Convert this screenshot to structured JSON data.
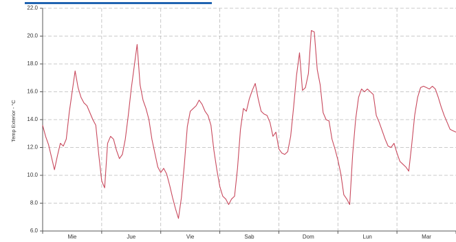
{
  "colors": {
    "line": "#c8485c",
    "grid": "#b9b9b9",
    "axis": "#555555",
    "header_bar": "#1f63b0"
  },
  "chart_data": {
    "type": "line",
    "title": "",
    "xlabel": "",
    "ylabel": "Temp Exterior - °C",
    "ylim": [
      6.0,
      22.0
    ],
    "yticks": [
      "6.0",
      "8.0",
      "10.0",
      "12.0",
      "14.0",
      "16.0",
      "18.0",
      "20.0",
      "22.0"
    ],
    "xlim": [
      0,
      7
    ],
    "day_labels": [
      "Mie",
      "Jue",
      "Vie",
      "Sab",
      "Dom",
      "Lun",
      "Mar"
    ],
    "grid": true,
    "legend": "none",
    "series": [
      {
        "x": [
          0,
          0.05,
          0.1,
          0.15,
          0.2,
          0.25,
          0.3,
          0.35,
          0.4,
          0.45,
          0.5,
          0.55,
          0.6,
          0.65,
          0.7,
          0.75,
          0.8,
          0.85,
          0.9,
          0.95,
          1.0,
          1.05,
          1.1,
          1.15,
          1.2,
          1.25,
          1.3,
          1.35,
          1.4,
          1.45,
          1.5,
          1.55,
          1.6,
          1.65,
          1.7,
          1.75,
          1.8,
          1.85,
          1.9,
          1.95,
          2.0,
          2.05,
          2.1,
          2.15,
          2.2,
          2.25,
          2.3,
          2.35,
          2.4,
          2.45,
          2.5,
          2.55,
          2.6,
          2.65,
          2.7,
          2.75,
          2.8,
          2.85,
          2.9,
          2.95,
          3.0,
          3.05,
          3.1,
          3.15,
          3.2,
          3.25,
          3.3,
          3.35,
          3.4,
          3.45,
          3.5,
          3.55,
          3.6,
          3.65,
          3.7,
          3.75,
          3.8,
          3.85,
          3.9,
          3.95,
          4.0,
          4.05,
          4.1,
          4.15,
          4.2,
          4.25,
          4.3,
          4.35,
          4.4,
          4.45,
          4.5,
          4.55,
          4.6,
          4.65,
          4.7,
          4.75,
          4.8,
          4.85,
          4.9,
          4.95,
          5.0,
          5.05,
          5.1,
          5.15,
          5.2,
          5.25,
          5.3,
          5.35,
          5.4,
          5.45,
          5.5,
          5.55,
          5.6,
          5.65,
          5.7,
          5.75,
          5.8,
          5.85,
          5.9,
          5.95,
          6.0,
          6.05,
          6.1,
          6.15,
          6.2,
          6.25,
          6.3,
          6.35,
          6.4,
          6.45,
          6.5,
          6.55,
          6.6,
          6.65,
          6.7,
          6.75,
          6.8,
          6.85,
          6.9,
          6.95,
          7.0
        ],
        "values": [
          13.6,
          12.8,
          12.2,
          11.3,
          10.4,
          11.4,
          12.3,
          12.1,
          12.6,
          14.5,
          16.0,
          17.5,
          16.3,
          15.6,
          15.2,
          15.0,
          14.5,
          14.0,
          13.6,
          11.5,
          9.6,
          9.1,
          12.3,
          12.8,
          12.6,
          11.8,
          11.2,
          11.5,
          12.6,
          14.3,
          16.2,
          17.8,
          19.4,
          16.5,
          15.4,
          14.8,
          14.0,
          12.6,
          11.6,
          10.6,
          10.2,
          10.5,
          10.1,
          9.3,
          8.4,
          7.6,
          6.9,
          8.4,
          10.8,
          13.5,
          14.6,
          14.8,
          15.0,
          15.4,
          15.1,
          14.6,
          14.3,
          13.6,
          11.8,
          10.4,
          9.2,
          8.5,
          8.3,
          7.9,
          8.3,
          8.5,
          10.5,
          13.3,
          14.8,
          14.6,
          15.5,
          16.1,
          16.6,
          15.5,
          14.6,
          14.4,
          14.3,
          13.8,
          12.8,
          13.1,
          11.9,
          11.6,
          11.5,
          11.7,
          12.8,
          14.9,
          17.2,
          18.8,
          16.1,
          16.3,
          17.3,
          20.4,
          20.3,
          17.6,
          16.5,
          14.5,
          14.0,
          13.9,
          12.6,
          11.9,
          11.1,
          10.1,
          8.6,
          8.3,
          7.9,
          11.5,
          14.0,
          15.6,
          16.2,
          16.0,
          16.2,
          16.0,
          15.8,
          14.3,
          13.8,
          13.2,
          12.6,
          12.1,
          12.0,
          12.3,
          11.6,
          11.0,
          10.8,
          10.6,
          10.3,
          12.2,
          14.3,
          15.6,
          16.3,
          16.4,
          16.3,
          16.2,
          16.4,
          16.2,
          15.6,
          14.9,
          14.3,
          13.8,
          13.3,
          13.2,
          13.1
        ]
      }
    ]
  }
}
